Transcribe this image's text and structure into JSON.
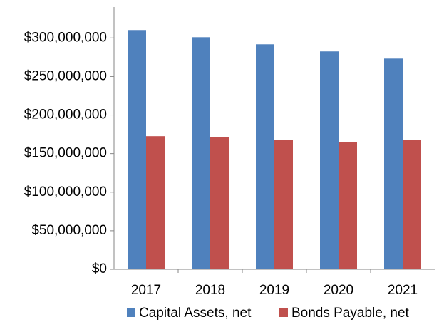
{
  "chart_data": {
    "type": "bar",
    "categories": [
      "2017",
      "2018",
      "2019",
      "2020",
      "2021"
    ],
    "series": [
      {
        "name": "Capital Assets, net",
        "color": "#4f81bd",
        "values": [
          310200000,
          300900000,
          291700000,
          282500000,
          273200000
        ]
      },
      {
        "name": "Bonds Payable, net",
        "color": "#c0504d",
        "values": [
          172600000,
          171700000,
          168000000,
          165200000,
          168000000
        ]
      }
    ],
    "ylim": [
      0,
      340000000
    ],
    "yticks": [
      {
        "value": 0,
        "label": "$0"
      },
      {
        "value": 50000000,
        "label": "$50,000,000"
      },
      {
        "value": 100000000,
        "label": "$100,000,000"
      },
      {
        "value": 150000000,
        "label": "$150,000,000"
      },
      {
        "value": 200000000,
        "label": "$200,000,000"
      },
      {
        "value": 250000000,
        "label": "$250,000,000"
      },
      {
        "value": 300000000,
        "label": "$300,000,000"
      }
    ],
    "grid": false,
    "legend": "bottom"
  }
}
